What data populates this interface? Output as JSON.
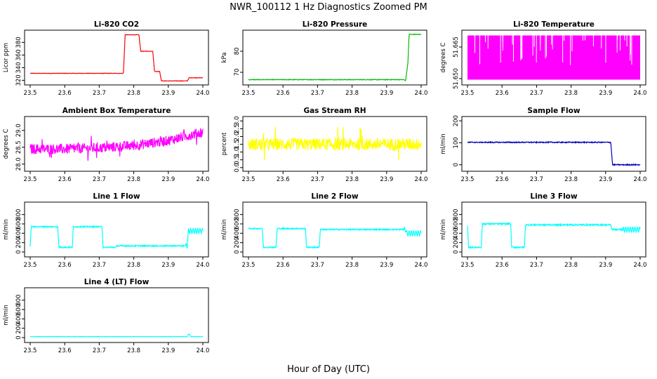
{
  "figure": {
    "title": "NWR_100112  1 Hz Diagnostics Zoomed PM",
    "xlabel": "Hour of Day (UTC)"
  },
  "chart_data": [
    {
      "id": "co2",
      "type": "line",
      "title": "Li-820 CO2",
      "ylabel": "Licor ppm",
      "color": "#ff0000",
      "x_ticks": [
        "23.5",
        "23.6",
        "23.7",
        "23.8",
        "23.9",
        "24.0"
      ],
      "y_ticks": [
        "320",
        "340",
        "360",
        "380"
      ],
      "xlim": [
        23.5,
        24.0
      ],
      "ylim": [
        316,
        396
      ],
      "series": [
        {
          "x": [
            23.5,
            23.77,
            23.775,
            23.815,
            23.82,
            23.855,
            23.86,
            23.875,
            23.88,
            23.955,
            23.96,
            24.0
          ],
          "y": [
            331,
            331,
            392,
            392,
            366,
            366,
            334,
            334,
            319,
            319,
            324,
            324
          ]
        }
      ]
    },
    {
      "id": "pressure",
      "type": "line",
      "title": "Li-820 Pressure",
      "ylabel": "kPa",
      "color": "#00bb00",
      "x_ticks": [
        "23.5",
        "23.6",
        "23.7",
        "23.8",
        "23.9",
        "24.0"
      ],
      "y_ticks": [
        "70",
        "80"
      ],
      "xlim": [
        23.5,
        24.0
      ],
      "ylim": [
        65,
        89
      ],
      "series": [
        {
          "x": [
            23.5,
            23.95,
            23.955,
            23.962,
            23.965,
            24.0
          ],
          "y": [
            66.5,
            66.5,
            66,
            75,
            88,
            88
          ]
        }
      ]
    },
    {
      "id": "licor-temp",
      "type": "line",
      "title": "Li-820 Temperature",
      "ylabel": "degrees C",
      "color": "#ff00ff",
      "x_ticks": [
        "23.5",
        "23.6",
        "23.7",
        "23.8",
        "23.9",
        "24.0"
      ],
      "y_ticks": [
        "51.650",
        "51.665"
      ],
      "xlim": [
        23.5,
        24.0
      ],
      "ylim": [
        51.648,
        51.672
      ],
      "series": [
        {
          "x": [
            23.5,
            24.0
          ],
          "y": [
            51.6495,
            51.6705
          ],
          "fill_band": true
        }
      ]
    },
    {
      "id": "ambient-box-temp",
      "type": "line",
      "title": "Ambient Box Temperature",
      "ylabel": "degrees C",
      "color": "#ff00ff",
      "x_ticks": [
        "23.5",
        "23.6",
        "23.7",
        "23.8",
        "23.9",
        "24.0"
      ],
      "y_ticks": [
        "28.0",
        "28.5",
        "29.0"
      ],
      "xlim": [
        23.5,
        24.0
      ],
      "ylim": [
        27.85,
        29.35
      ],
      "series": [
        {
          "x": [
            23.5,
            23.6,
            23.7,
            23.8,
            23.9,
            24.0
          ],
          "y": [
            28.45,
            28.45,
            28.48,
            28.55,
            28.7,
            28.95
          ]
        }
      ]
    },
    {
      "id": "gas-stream-rh",
      "type": "line",
      "title": "Gas Stream RH",
      "ylabel": "percent",
      "color": "#ffff00",
      "x_ticks": [
        "23.5",
        "23.6",
        "23.7",
        "23.8",
        "23.9",
        "24.0"
      ],
      "y_ticks": [
        "0.0",
        "0.5",
        "1.0",
        "1.5",
        "2.0",
        "2.5",
        "3.0"
      ],
      "xlim": [
        23.5,
        24.0
      ],
      "ylim": [
        -0.1,
        3.15
      ],
      "series": [
        {
          "x": [
            23.5,
            24.0
          ],
          "y": [
            1.5,
            1.5
          ]
        }
      ]
    },
    {
      "id": "sample-flow",
      "type": "line",
      "title": "Sample Flow",
      "ylabel": "ml/min",
      "color": "#0000bb",
      "x_ticks": [
        "23.5",
        "23.6",
        "23.7",
        "23.8",
        "23.9",
        "24.0"
      ],
      "y_ticks": [
        "0",
        "100",
        "200"
      ],
      "xlim": [
        23.5,
        24.0
      ],
      "ylim": [
        -20,
        210
      ],
      "series": [
        {
          "x": [
            23.5,
            23.915,
            23.92,
            24.0
          ],
          "y": [
            102,
            102,
            0,
            0
          ]
        }
      ]
    },
    {
      "id": "line1-flow",
      "type": "line",
      "title": "Line 1 Flow",
      "ylabel": "ml/min",
      "color": "#00ffff",
      "x_ticks": [
        "23.5",
        "23.6",
        "23.7",
        "23.8",
        "23.9",
        "24.0"
      ],
      "y_ticks": [
        "0",
        "200",
        "400",
        "600",
        "800"
      ],
      "xlim": [
        23.5,
        24.0
      ],
      "ylim": [
        -60,
        1020
      ],
      "series": [
        {
          "x": [
            23.5,
            23.503,
            23.58,
            23.583,
            23.622,
            23.625,
            23.708,
            23.711,
            23.748,
            23.751,
            23.955,
            23.958,
            24.0
          ],
          "y": [
            100,
            540,
            540,
            100,
            100,
            540,
            540,
            100,
            100,
            130,
            130,
            450,
            450
          ]
        }
      ]
    },
    {
      "id": "line2-flow",
      "type": "line",
      "title": "Line 2 Flow",
      "ylabel": "ml/min",
      "color": "#00ffff",
      "x_ticks": [
        "23.5",
        "23.6",
        "23.7",
        "23.8",
        "23.9",
        "24.0"
      ],
      "y_ticks": [
        "0",
        "200",
        "400",
        "600",
        "800"
      ],
      "xlim": [
        23.5,
        24.0
      ],
      "ylim": [
        -60,
        1020
      ],
      "series": [
        {
          "x": [
            23.5,
            23.54,
            23.543,
            23.58,
            23.583,
            23.665,
            23.668,
            23.705,
            23.708,
            23.955,
            23.958,
            24.0
          ],
          "y": [
            500,
            500,
            100,
            100,
            500,
            500,
            100,
            100,
            480,
            480,
            400,
            400
          ]
        }
      ]
    },
    {
      "id": "line3-flow",
      "type": "line",
      "title": "Line 3 Flow",
      "ylabel": "ml/min",
      "color": "#00ffff",
      "x_ticks": [
        "23.5",
        "23.6",
        "23.7",
        "23.8",
        "23.9",
        "24.0"
      ],
      "y_ticks": [
        "0",
        "200",
        "400",
        "600",
        "800"
      ],
      "xlim": [
        23.5,
        24.0
      ],
      "ylim": [
        -60,
        1020
      ],
      "series": [
        {
          "x": [
            23.5,
            23.503,
            23.54,
            23.543,
            23.625,
            23.628,
            23.665,
            23.668,
            23.915,
            23.918,
            24.0
          ],
          "y": [
            560,
            100,
            100,
            600,
            600,
            100,
            100,
            580,
            580,
            480,
            480
          ]
        }
      ]
    },
    {
      "id": "line4-flow",
      "type": "line",
      "title": "Line 4 (LT) Flow",
      "ylabel": "ml/min",
      "color": "#00ffff",
      "x_ticks": [
        "23.5",
        "23.6",
        "23.7",
        "23.8",
        "23.9",
        "24.0"
      ],
      "y_ticks": [
        "0",
        "200",
        "400",
        "600",
        "800"
      ],
      "xlim": [
        23.5,
        24.0
      ],
      "ylim": [
        -60,
        1020
      ],
      "series": [
        {
          "x": [
            23.5,
            23.955,
            23.958,
            23.962,
            23.965,
            24.0
          ],
          "y": [
            20,
            20,
            70,
            70,
            20,
            20
          ]
        }
      ]
    }
  ]
}
